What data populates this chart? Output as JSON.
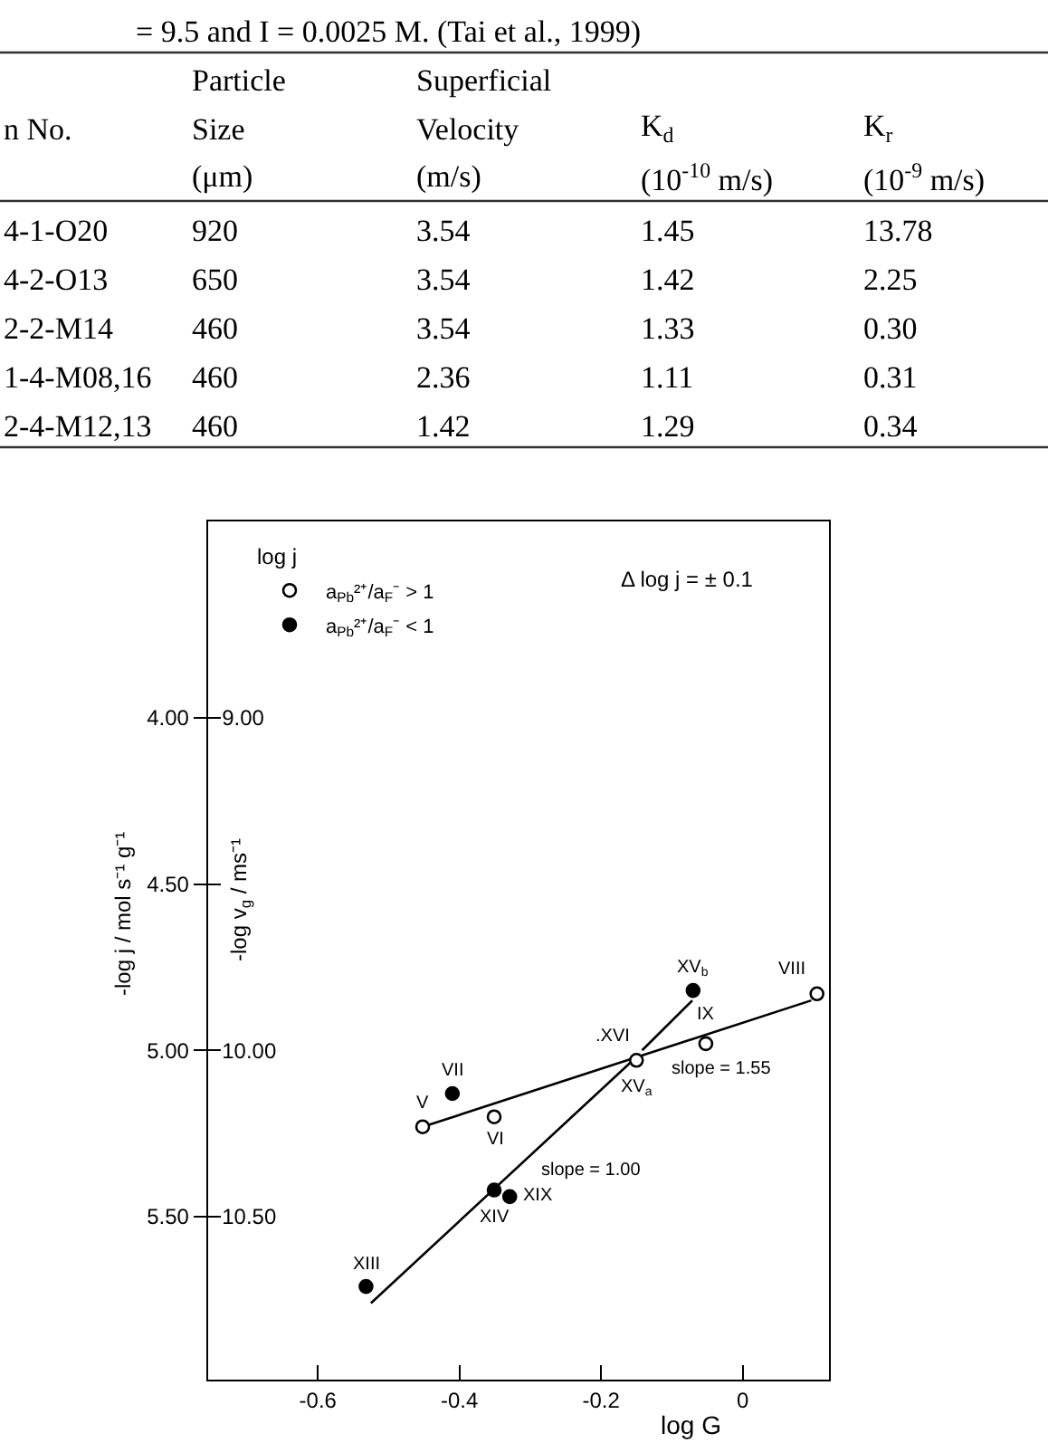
{
  "chart_data": [
    {
      "type": "other",
      "title": "= 9.5 and I = 0.0025 M. (Tai et al., 1999)",
      "ylabel": "n No.",
      "categories": [
        "Particle\nSize\n(μm)",
        "Superficial\nVelocity\n(m/s)",
        "K$_{d}$\n(10$^{-10}$ m/s)",
        "K$_{r}$\n(10$^{-9}$ m/s)"
      ],
      "y_categories": [
        "4-1-O20",
        "4-2-O13",
        "2-2-M14",
        "1-4-M08,16",
        "2-4-M12,13"
      ],
      "cell_labels": [
        [
          "920",
          "3.54",
          "1.45",
          "13.78"
        ],
        [
          "650",
          "3.54",
          "1.42",
          "2.25"
        ],
        [
          "460",
          "3.54",
          "1.33",
          "0.30"
        ],
        [
          "460",
          "2.36",
          "1.11",
          "0.31"
        ],
        [
          "460",
          "1.42",
          "1.29",
          "0.34"
        ]
      ]
    },
    {
      "type": "scatter",
      "xlabel": "log G",
      "ylabel": "-log j / mol s⁻¹ g⁻¹",
      "y2label": "-log v$_{g}$ / ms⁻¹",
      "legend_title": "log j",
      "legend": "top left",
      "marker": "circle",
      "series": [
        {
          "name": "a$_{Pb}$²⁺/a$_{F}$⁻ > 1",
          "color": "#ffffff",
          "x": [
            -0.452,
            -0.351,
            -0.15,
            -0.052,
            0.105
          ],
          "values": [
            5.23,
            5.2,
            5.03,
            4.98,
            4.83
          ]
        },
        {
          "name": "a$_{Pb}$²⁺/a$_{F}$⁻ < 1",
          "color": "#000000",
          "x": [
            -0.532,
            -0.351,
            -0.329,
            -0.41,
            -0.07
          ],
          "values": [
            5.71,
            5.42,
            5.44,
            5.13,
            4.82
          ]
        },
        {
          "type": "line",
          "marker": "none",
          "color": "#000000",
          "x": [
            -0.525,
            -0.155
          ],
          "values": [
            5.76,
            5.03
          ]
        },
        {
          "type": "line",
          "marker": "none",
          "color": "#000000",
          "x": [
            -0.452,
            0.097
          ],
          "values": [
            5.23,
            4.85
          ]
        },
        {
          "type": "line",
          "marker": "none",
          "color": "#000000",
          "x": [
            -0.142,
            -0.071
          ],
          "values": [
            5.0,
            4.85
          ]
        }
      ],
      "xlim": [
        -0.755,
        0.122
      ],
      "xticks": [
        -0.6,
        -0.4,
        -0.2,
        0
      ],
      "ylim": [
        5.99,
        3.41
      ],
      "yticks": [
        {
          "value": 4,
          "label": "4.00"
        },
        {
          "value": 4.5,
          "label": "4.50"
        },
        {
          "value": 5,
          "label": "5.00"
        },
        {
          "value": 5.5,
          "label": "5.50"
        }
      ],
      "y2lim": [
        10.99,
        8.41
      ],
      "y2ticks": [
        {
          "value": 9,
          "label": "9.00"
        },
        {
          "value": 9.5,
          "label": null
        },
        {
          "value": 10,
          "label": "10.00"
        },
        {
          "value": 10.5,
          "label": "10.50"
        }
      ],
      "annotations": [
        "Δ log j = ± 0.1",
        {
          "text": "XIII",
          "x": -0.532,
          "y": 5.71
        },
        {
          "text": "XIV",
          "x": -0.351,
          "y": 5.42
        },
        {
          "text": "XIX",
          "x": -0.329,
          "y": 5.44
        },
        {
          "text": "V",
          "x": -0.452,
          "y": 5.23
        },
        {
          "text": "VII",
          "x": -0.41,
          "y": 5.13
        },
        {
          "text": "VI",
          "x": -0.351,
          "y": 5.2
        },
        {
          "text": "XV$_{a}$",
          "x": -0.15,
          "y": 5.03
        },
        {
          "text": ".XVI",
          "x": -0.15,
          "y": 5.03
        },
        {
          "text": "XV$_{b}$",
          "x": -0.07,
          "y": 4.82
        },
        {
          "text": "IX",
          "x": -0.052,
          "y": 4.98
        },
        {
          "text": "VIII",
          "x": 0.105,
          "y": 4.83
        },
        {
          "text": "slope = 1.00",
          "x": -0.3,
          "y": 5.32
        },
        {
          "text": "slope = 1.55",
          "x": -0.03,
          "y": 4.94
        }
      ]
    }
  ]
}
